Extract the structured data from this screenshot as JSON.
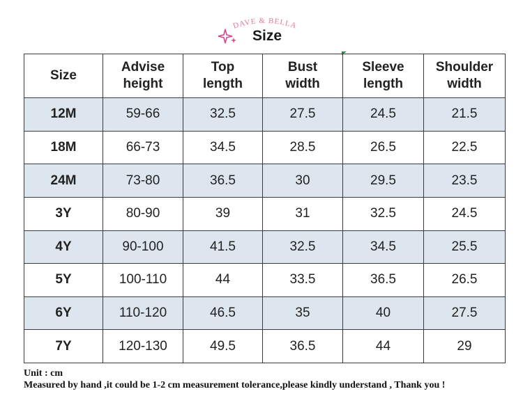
{
  "header": {
    "brand": "DAVE & BELLA",
    "title": "Size"
  },
  "table": {
    "headers": [
      {
        "line1": "Size",
        "line2": ""
      },
      {
        "line1": "Advise",
        "line2": "height"
      },
      {
        "line1": "Top",
        "line2": "length"
      },
      {
        "line1": "Bust",
        "line2": "width"
      },
      {
        "line1": "Sleeve",
        "line2": "length"
      },
      {
        "line1": "Shoulder",
        "line2": "width"
      }
    ],
    "rows": [
      {
        "size": "12M",
        "height": "59-66",
        "top": "32.5",
        "bust": "27.5",
        "sleeve": "24.5",
        "shoulder": "21.5"
      },
      {
        "size": "18M",
        "height": "66-73",
        "top": "34.5",
        "bust": "28.5",
        "sleeve": "26.5",
        "shoulder": "22.5"
      },
      {
        "size": "24M",
        "height": "73-80",
        "top": "36.5",
        "bust": "30",
        "sleeve": "29.5",
        "shoulder": "23.5"
      },
      {
        "size": "3Y",
        "height": "80-90",
        "top": "39",
        "bust": "31",
        "sleeve": "32.5",
        "shoulder": "24.5"
      },
      {
        "size": "4Y",
        "height": "90-100",
        "top": "41.5",
        "bust": "32.5",
        "sleeve": "34.5",
        "shoulder": "25.5"
      },
      {
        "size": "5Y",
        "height": "100-110",
        "top": "44",
        "bust": "33.5",
        "sleeve": "36.5",
        "shoulder": "26.5"
      },
      {
        "size": "6Y",
        "height": "110-120",
        "top": "46.5",
        "bust": "35",
        "sleeve": "40",
        "shoulder": "27.5"
      },
      {
        "size": "7Y",
        "height": "120-130",
        "top": "49.5",
        "bust": "36.5",
        "sleeve": "44",
        "shoulder": "29"
      }
    ]
  },
  "footer": {
    "unit": "Unit : cm",
    "note": "Measured by hand ,it could be 1-2 cm measurement tolerance,please kindly understand , Thank you !"
  },
  "colors": {
    "brand_pink": "#e5739c",
    "row_shade": "#dde5ef",
    "border": "#3a3a3a"
  }
}
